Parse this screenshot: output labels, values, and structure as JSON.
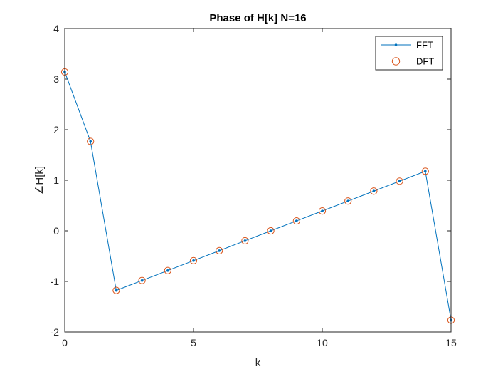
{
  "chart_data": {
    "type": "line",
    "title": "Phase of H[k] N=16",
    "xlabel": "k",
    "ylabel": "∠H[k]",
    "xlim": [
      0,
      15
    ],
    "ylim": [
      -2,
      4
    ],
    "xticks": [
      0,
      5,
      10,
      15
    ],
    "yticks": [
      -2,
      -1,
      0,
      1,
      2,
      3,
      4
    ],
    "grid": false,
    "legend_position": "top-right",
    "x": [
      0,
      1,
      2,
      3,
      4,
      5,
      6,
      7,
      8,
      9,
      10,
      11,
      12,
      13,
      14,
      15
    ],
    "series": [
      {
        "name": "FFT",
        "style": "line-dot",
        "color": "#0072BD",
        "values": [
          3.1416,
          1.7671,
          -1.1781,
          -0.9817,
          -0.7854,
          -0.589,
          -0.3927,
          -0.1963,
          0.0,
          0.1963,
          0.3927,
          0.589,
          0.7854,
          0.9817,
          1.1781,
          -1.7671
        ]
      },
      {
        "name": "DFT",
        "style": "circle",
        "color": "#D95319",
        "values": [
          3.1416,
          1.7671,
          -1.1781,
          -0.9817,
          -0.7854,
          -0.589,
          -0.3927,
          -0.1963,
          0.0,
          0.1963,
          0.3927,
          0.589,
          0.7854,
          0.9817,
          1.1781,
          -1.7671
        ]
      }
    ]
  }
}
